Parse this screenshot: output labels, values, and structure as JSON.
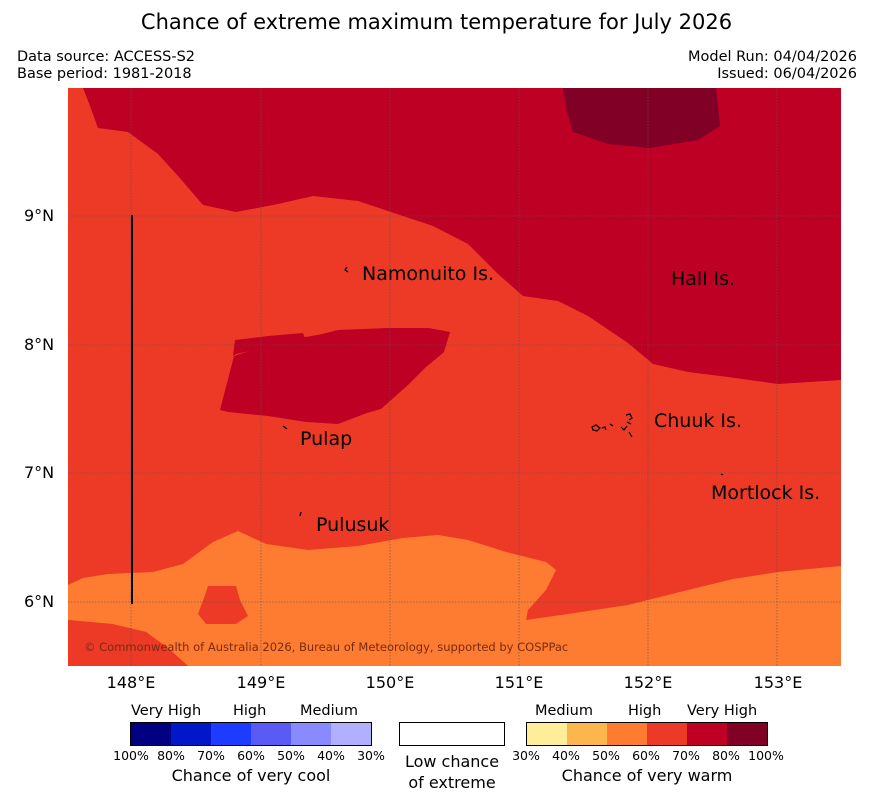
{
  "title": "Chance of extreme maximum temperature for July 2026",
  "data_source": "Data source: ACCESS-S2",
  "base_period": "Base period: 1981-2018",
  "model_run": "Model Run: 04/04/2026",
  "issued": "Issued: 06/04/2026",
  "copyright": "© Commonwealth of Australia 2026, Bureau of Meteorology, supported by COSPPac",
  "map": {
    "lat_labels": [
      "9°N",
      "8°N",
      "7°N",
      "6°N"
    ],
    "lon_labels": [
      "148°E",
      "149°E",
      "150°E",
      "151°E",
      "152°E",
      "153°E"
    ],
    "places": [
      "Namonuito Is.",
      "Hall Is.",
      "Pulap",
      "Chuuk Is.",
      "Pulusuk",
      "Mortlock Is."
    ],
    "colors": {
      "very_warm_60_70": "#ec3a26",
      "very_warm_70_80": "#be0025",
      "very_warm_80_100": "#800026",
      "warm_50_60": "#fd7c31"
    }
  },
  "legend": {
    "cool": {
      "categories": [
        "Very High",
        "High",
        "Medium"
      ],
      "percentages": [
        "100%",
        "80%",
        "70%",
        "60%",
        "50%",
        "40%",
        "30%"
      ],
      "colors": [
        "#000080",
        "#0018c8",
        "#1e3cff",
        "#5a5af5",
        "#8a8aff",
        "#b0b0ff"
      ],
      "title": "Chance of very cool"
    },
    "neutral": {
      "label_line1": "Low chance",
      "label_line2": "of extreme"
    },
    "warm": {
      "categories": [
        "Medium",
        "High",
        "Very High"
      ],
      "percentages": [
        "30%",
        "40%",
        "50%",
        "60%",
        "70%",
        "80%",
        "100%"
      ],
      "colors": [
        "#ffee99",
        "#fdb54d",
        "#fd7c31",
        "#ec3a26",
        "#be0025",
        "#800026"
      ],
      "title": "Chance of very warm"
    }
  }
}
